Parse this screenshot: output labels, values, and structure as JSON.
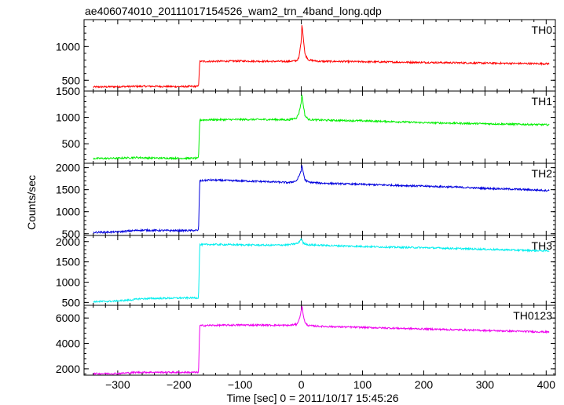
{
  "chart_data": {
    "type": "line",
    "title": "ae406074010_20111017154526_wam2_trn_4band_long.qdp",
    "xlabel": "Time [sec] 0 = 2011/10/17 15:45:26",
    "ylabel": "Counts/sec",
    "xlim": [
      -355,
      415
    ],
    "xticks": [
      -300,
      -200,
      -100,
      0,
      100,
      200,
      300,
      400
    ],
    "xtick_labels": [
      "−300",
      "−200",
      "−100",
      "0",
      "100",
      "200",
      "300",
      "400"
    ],
    "grid": false,
    "panels": [
      {
        "name": "TH0",
        "color": "#ff0000",
        "ylim": [
          340,
          1400
        ],
        "yticks": [
          500,
          1000
        ],
        "ytick_labels": [
          "500",
          "1000"
        ],
        "x": [
          -340,
          -300,
          -265,
          -240,
          -200,
          -168,
          -166,
          -150,
          -100,
          -50,
          -20,
          -8,
          -4,
          0,
          1,
          3,
          6,
          12,
          30,
          50,
          100,
          150,
          200,
          250,
          300,
          350,
          405
        ],
        "y": [
          400,
          405,
          410,
          410,
          405,
          410,
          780,
          780,
          785,
          780,
          780,
          790,
          830,
          1100,
          1350,
          1150,
          880,
          800,
          780,
          780,
          775,
          770,
          765,
          760,
          755,
          750,
          745
        ]
      },
      {
        "name": "TH1",
        "color": "#00ee00",
        "ylim": [
          130,
          1500
        ],
        "yticks": [
          500,
          1000,
          1500
        ],
        "ytick_labels": [
          "500",
          "1000",
          "1500"
        ],
        "x": [
          -340,
          -300,
          -270,
          -250,
          -200,
          -168,
          -166,
          -150,
          -100,
          -50,
          -20,
          -8,
          -4,
          0,
          1,
          3,
          6,
          12,
          30,
          50,
          100,
          150,
          200,
          250,
          300,
          350,
          405
        ],
        "y": [
          220,
          225,
          240,
          230,
          225,
          225,
          950,
          955,
          960,
          960,
          955,
          990,
          1080,
          1300,
          1450,
          1250,
          1030,
          960,
          950,
          945,
          935,
          920,
          900,
          890,
          880,
          870,
          860
        ]
      },
      {
        "name": "TH2",
        "color": "#0000dd",
        "ylim": [
          460,
          2100
        ],
        "yticks": [
          500,
          1000,
          1500,
          2000
        ],
        "ytick_labels": [
          "500",
          "1000",
          "1500",
          "2000"
        ],
        "x": [
          -340,
          -300,
          -265,
          -240,
          -200,
          -168,
          -166,
          -150,
          -100,
          -50,
          -20,
          -8,
          -4,
          0,
          1,
          3,
          6,
          12,
          30,
          50,
          100,
          150,
          200,
          250,
          300,
          350,
          405
        ],
        "y": [
          530,
          540,
          580,
          575,
          570,
          575,
          1700,
          1720,
          1700,
          1680,
          1660,
          1700,
          1800,
          1950,
          2050,
          1900,
          1720,
          1670,
          1650,
          1640,
          1620,
          1600,
          1580,
          1560,
          1530,
          1510,
          1480
        ]
      },
      {
        "name": "TH3",
        "color": "#00eeee",
        "ylim": [
          430,
          2150
        ],
        "yticks": [
          500,
          1000,
          1500,
          2000
        ],
        "ytick_labels": [
          "500",
          "1000",
          "1500",
          "2000"
        ],
        "x": [
          -340,
          -310,
          -280,
          -265,
          -240,
          -200,
          -168,
          -166,
          -150,
          -100,
          -50,
          -20,
          -5,
          0,
          3,
          12,
          50,
          100,
          150,
          200,
          250,
          300,
          350,
          405
        ],
        "y": [
          520,
          530,
          560,
          590,
          600,
          610,
          615,
          1920,
          1930,
          1920,
          1910,
          1920,
          1960,
          2080,
          1960,
          1920,
          1900,
          1880,
          1860,
          1850,
          1830,
          1810,
          1790,
          1770
        ]
      },
      {
        "name": "TH0123",
        "color": "#ee00ee",
        "ylim": [
          1500,
          7000
        ],
        "yticks": [
          2000,
          4000,
          6000
        ],
        "ytick_labels": [
          "2000",
          "4000",
          "6000"
        ],
        "x": [
          -340,
          -300,
          -270,
          -250,
          -200,
          -168,
          -166,
          -150,
          -100,
          -50,
          -20,
          -8,
          -4,
          0,
          1,
          3,
          6,
          12,
          30,
          50,
          100,
          150,
          200,
          250,
          300,
          350,
          405
        ],
        "y": [
          1620,
          1630,
          1720,
          1730,
          1720,
          1720,
          5400,
          5420,
          5450,
          5440,
          5420,
          5500,
          5800,
          6600,
          7000,
          6300,
          5600,
          5400,
          5350,
          5320,
          5260,
          5200,
          5140,
          5080,
          5020,
          4960,
          4900
        ]
      }
    ]
  }
}
